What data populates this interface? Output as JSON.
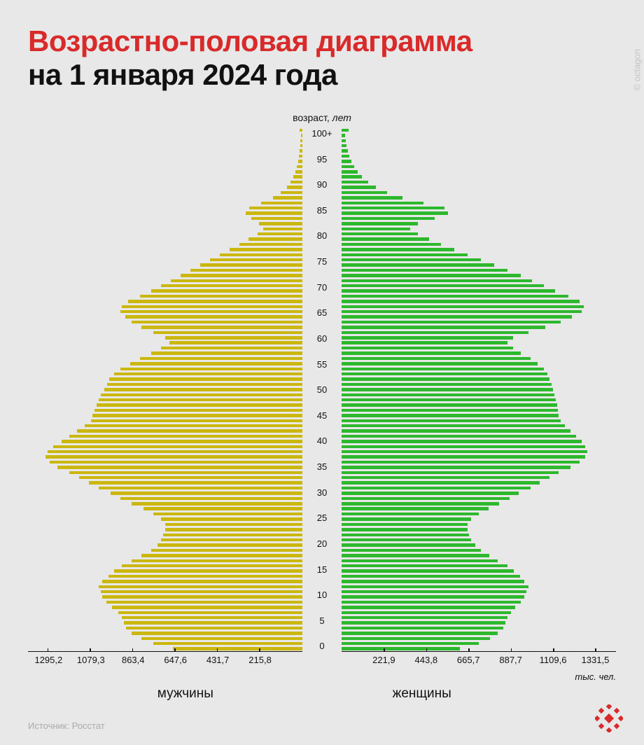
{
  "header": {
    "title": "Возрастно-половая диаграмма",
    "subtitle": "на 1 января 2024 года"
  },
  "watermark": "© octagon",
  "chart": {
    "type": "population-pyramid",
    "y_axis_title": "возраст,",
    "y_axis_unit": "лет",
    "x_axis_unit": "тыс. чел.",
    "male_label": "мужчины",
    "female_label": "женщины",
    "male_color": "#cbb70e",
    "female_color": "#2db82d",
    "background_color": "#e8e8e8",
    "title_color": "#d92a2a",
    "text_color": "#111111",
    "bar_height_ratio": 0.6,
    "age_tick_step": 5,
    "age_top_label": "100+",
    "male_max": 1400,
    "female_max": 1440,
    "male_ticks": [
      1295.2,
      1079.3,
      863.4,
      647.6,
      431.7,
      215.8
    ],
    "female_ticks": [
      221.9,
      443.8,
      665.7,
      887.7,
      1109.6,
      1331.5
    ],
    "ages": [
      0,
      1,
      2,
      3,
      4,
      5,
      6,
      7,
      8,
      9,
      10,
      11,
      12,
      13,
      14,
      15,
      16,
      17,
      18,
      19,
      20,
      21,
      22,
      23,
      24,
      25,
      26,
      27,
      28,
      29,
      30,
      31,
      32,
      33,
      34,
      35,
      36,
      37,
      38,
      39,
      40,
      41,
      42,
      43,
      44,
      45,
      46,
      47,
      48,
      49,
      50,
      51,
      52,
      53,
      54,
      55,
      56,
      57,
      58,
      59,
      60,
      61,
      62,
      63,
      64,
      65,
      66,
      67,
      68,
      69,
      70,
      71,
      72,
      73,
      74,
      75,
      76,
      77,
      78,
      79,
      80,
      81,
      82,
      83,
      84,
      85,
      86,
      87,
      88,
      89,
      90,
      91,
      92,
      93,
      94,
      95,
      96,
      97,
      98,
      99,
      100
    ],
    "male_values": [
      660,
      760,
      820,
      870,
      900,
      910,
      920,
      940,
      970,
      1000,
      1020,
      1030,
      1040,
      1020,
      990,
      960,
      920,
      870,
      820,
      770,
      740,
      720,
      710,
      700,
      700,
      720,
      760,
      810,
      870,
      930,
      980,
      1040,
      1090,
      1140,
      1190,
      1250,
      1290,
      1310,
      1300,
      1270,
      1230,
      1190,
      1150,
      1110,
      1080,
      1070,
      1060,
      1050,
      1040,
      1030,
      1010,
      995,
      985,
      960,
      930,
      880,
      830,
      770,
      720,
      680,
      700,
      760,
      820,
      870,
      905,
      930,
      920,
      890,
      830,
      770,
      720,
      670,
      620,
      570,
      520,
      470,
      420,
      370,
      320,
      275,
      230,
      200,
      220,
      260,
      290,
      270,
      210,
      150,
      110,
      80,
      60,
      45,
      35,
      27,
      22,
      18,
      14,
      11,
      9,
      7,
      14
    ],
    "female_values": [
      620,
      720,
      780,
      820,
      850,
      860,
      870,
      890,
      910,
      940,
      960,
      970,
      980,
      960,
      935,
      905,
      870,
      820,
      775,
      730,
      700,
      680,
      670,
      660,
      660,
      680,
      720,
      770,
      825,
      880,
      930,
      990,
      1040,
      1090,
      1140,
      1200,
      1250,
      1280,
      1290,
      1280,
      1260,
      1230,
      1200,
      1170,
      1150,
      1140,
      1135,
      1130,
      1125,
      1118,
      1110,
      1102,
      1092,
      1080,
      1060,
      1030,
      990,
      940,
      900,
      870,
      900,
      980,
      1070,
      1150,
      1210,
      1260,
      1270,
      1250,
      1190,
      1120,
      1060,
      1000,
      940,
      870,
      800,
      730,
      660,
      590,
      520,
      460,
      400,
      360,
      400,
      490,
      560,
      540,
      430,
      320,
      240,
      180,
      140,
      108,
      84,
      66,
      52,
      42,
      34,
      27,
      22,
      17,
      38
    ]
  },
  "source": "Источник: Росстат",
  "logo_color": "#d92a2a"
}
